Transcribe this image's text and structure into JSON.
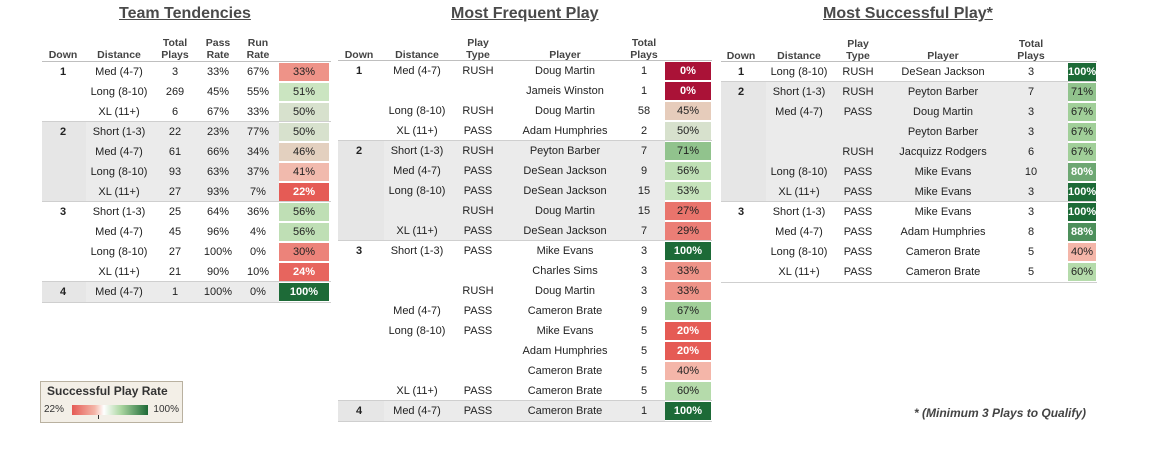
{
  "tables": [
    {
      "title": "Team Tendencies",
      "columns": [
        "Down",
        "Distance",
        "Total Plays",
        "Pass Rate",
        "Run Rate",
        ""
      ],
      "rows": [
        {
          "down": "1",
          "distance": "Med (4-7)",
          "plays": "3",
          "pass": "33%",
          "run": "67%",
          "rate": "33%",
          "rate_value": 33
        },
        {
          "down": "",
          "distance": "Long (8-10)",
          "plays": "269",
          "pass": "45%",
          "run": "55%",
          "rate": "51%",
          "rate_value": 51
        },
        {
          "down": "",
          "distance": "XL (11+)",
          "plays": "6",
          "pass": "67%",
          "run": "33%",
          "rate": "50%",
          "rate_value": 50
        },
        {
          "down": "2",
          "distance": "Short (1-3)",
          "plays": "22",
          "pass": "23%",
          "run": "77%",
          "rate": "50%",
          "rate_value": 50
        },
        {
          "down": "",
          "distance": "Med (4-7)",
          "plays": "61",
          "pass": "66%",
          "run": "34%",
          "rate": "46%",
          "rate_value": 46
        },
        {
          "down": "",
          "distance": "Long (8-10)",
          "plays": "93",
          "pass": "63%",
          "run": "37%",
          "rate": "41%",
          "rate_value": 41
        },
        {
          "down": "",
          "distance": "XL (11+)",
          "plays": "27",
          "pass": "93%",
          "run": "7%",
          "rate": "22%",
          "rate_value": 22
        },
        {
          "down": "3",
          "distance": "Short (1-3)",
          "plays": "25",
          "pass": "64%",
          "run": "36%",
          "rate": "56%",
          "rate_value": 56
        },
        {
          "down": "",
          "distance": "Med (4-7)",
          "plays": "45",
          "pass": "96%",
          "run": "4%",
          "rate": "56%",
          "rate_value": 56
        },
        {
          "down": "",
          "distance": "Long (8-10)",
          "plays": "27",
          "pass": "100%",
          "run": "0%",
          "rate": "30%",
          "rate_value": 30
        },
        {
          "down": "",
          "distance": "XL (11+)",
          "plays": "21",
          "pass": "90%",
          "run": "10%",
          "rate": "24%",
          "rate_value": 24
        },
        {
          "down": "4",
          "distance": "Med (4-7)",
          "plays": "1",
          "pass": "100%",
          "run": "0%",
          "rate": "100%",
          "rate_value": 100
        }
      ]
    },
    {
      "title": "Most Frequent Play",
      "columns": [
        "Down",
        "Distance",
        "Play Type",
        "Player",
        "Total Plays",
        ""
      ],
      "rows": [
        {
          "down": "1",
          "distance": "Med (4-7)",
          "type": "RUSH",
          "player": "Doug Martin",
          "plays": "1",
          "rate": "0%",
          "rate_value": 0
        },
        {
          "down": "",
          "distance": "",
          "type": "",
          "player": "Jameis Winston",
          "plays": "1",
          "rate": "0%",
          "rate_value": 0
        },
        {
          "down": "",
          "distance": "Long (8-10)",
          "type": "RUSH",
          "player": "Doug Martin",
          "plays": "58",
          "rate": "45%",
          "rate_value": 45
        },
        {
          "down": "",
          "distance": "XL (11+)",
          "type": "PASS",
          "player": "Adam Humphries",
          "plays": "2",
          "rate": "50%",
          "rate_value": 50
        },
        {
          "down": "2",
          "distance": "Short (1-3)",
          "type": "RUSH",
          "player": "Peyton Barber",
          "plays": "7",
          "rate": "71%",
          "rate_value": 71
        },
        {
          "down": "",
          "distance": "Med (4-7)",
          "type": "PASS",
          "player": "DeSean Jackson",
          "plays": "9",
          "rate": "56%",
          "rate_value": 56
        },
        {
          "down": "",
          "distance": "Long (8-10)",
          "type": "PASS",
          "player": "DeSean Jackson",
          "plays": "15",
          "rate": "53%",
          "rate_value": 53
        },
        {
          "down": "",
          "distance": "",
          "type": "RUSH",
          "player": "Doug Martin",
          "plays": "15",
          "rate": "27%",
          "rate_value": 27
        },
        {
          "down": "",
          "distance": "XL (11+)",
          "type": "PASS",
          "player": "DeSean Jackson",
          "plays": "7",
          "rate": "29%",
          "rate_value": 29
        },
        {
          "down": "3",
          "distance": "Short (1-3)",
          "type": "PASS",
          "player": "Mike Evans",
          "plays": "3",
          "rate": "100%",
          "rate_value": 100
        },
        {
          "down": "",
          "distance": "",
          "type": "",
          "player": "Charles Sims",
          "plays": "3",
          "rate": "33%",
          "rate_value": 33
        },
        {
          "down": "",
          "distance": "",
          "type": "RUSH",
          "player": "Doug Martin",
          "plays": "3",
          "rate": "33%",
          "rate_value": 33
        },
        {
          "down": "",
          "distance": "Med (4-7)",
          "type": "PASS",
          "player": "Cameron Brate",
          "plays": "9",
          "rate": "67%",
          "rate_value": 67
        },
        {
          "down": "",
          "distance": "Long (8-10)",
          "type": "PASS",
          "player": "Mike Evans",
          "plays": "5",
          "rate": "20%",
          "rate_value": 20
        },
        {
          "down": "",
          "distance": "",
          "type": "",
          "player": "Adam Humphries",
          "plays": "5",
          "rate": "20%",
          "rate_value": 20
        },
        {
          "down": "",
          "distance": "",
          "type": "",
          "player": "Cameron Brate",
          "plays": "5",
          "rate": "40%",
          "rate_value": 40
        },
        {
          "down": "",
          "distance": "XL (11+)",
          "type": "PASS",
          "player": "Cameron Brate",
          "plays": "5",
          "rate": "60%",
          "rate_value": 60
        },
        {
          "down": "4",
          "distance": "Med (4-7)",
          "type": "PASS",
          "player": "Cameron Brate",
          "plays": "1",
          "rate": "100%",
          "rate_value": 100
        }
      ]
    },
    {
      "title": "Most Successful Play*",
      "columns": [
        "Down",
        "Distance",
        "Play Type",
        "Player",
        "Total Plays",
        ""
      ],
      "rows": [
        {
          "down": "1",
          "distance": "Long (8-10)",
          "type": "RUSH",
          "player": "DeSean Jackson",
          "plays": "3",
          "rate": "100%",
          "rate_value": 100
        },
        {
          "down": "2",
          "distance": "Short (1-3)",
          "type": "RUSH",
          "player": "Peyton Barber",
          "plays": "7",
          "rate": "71%",
          "rate_value": 71
        },
        {
          "down": "",
          "distance": "Med (4-7)",
          "type": "PASS",
          "player": "Doug Martin",
          "plays": "3",
          "rate": "67%",
          "rate_value": 67
        },
        {
          "down": "",
          "distance": "",
          "type": "",
          "player": "Peyton Barber",
          "plays": "3",
          "rate": "67%",
          "rate_value": 67
        },
        {
          "down": "",
          "distance": "",
          "type": "RUSH",
          "player": "Jacquizz Rodgers",
          "plays": "6",
          "rate": "67%",
          "rate_value": 67
        },
        {
          "down": "",
          "distance": "Long (8-10)",
          "type": "PASS",
          "player": "Mike Evans",
          "plays": "10",
          "rate": "80%",
          "rate_value": 80
        },
        {
          "down": "",
          "distance": "XL (11+)",
          "type": "PASS",
          "player": "Mike Evans",
          "plays": "3",
          "rate": "100%",
          "rate_value": 100
        },
        {
          "down": "3",
          "distance": "Short (1-3)",
          "type": "PASS",
          "player": "Mike Evans",
          "plays": "3",
          "rate": "100%",
          "rate_value": 100
        },
        {
          "down": "",
          "distance": "Med (4-7)",
          "type": "PASS",
          "player": "Adam Humphries",
          "plays": "8",
          "rate": "88%",
          "rate_value": 88
        },
        {
          "down": "",
          "distance": "Long (8-10)",
          "type": "PASS",
          "player": "Cameron Brate",
          "plays": "5",
          "rate": "40%",
          "rate_value": 40
        },
        {
          "down": "",
          "distance": "XL (11+)",
          "type": "PASS",
          "player": "Cameron Brate",
          "plays": "5",
          "rate": "60%",
          "rate_value": 60
        }
      ]
    }
  ],
  "legend": {
    "title": "Successful Play Rate",
    "min_label": "22%",
    "max_label": "100%"
  },
  "footnote": "* (Minimum 3 Plays to Qualify)",
  "chart_data": [
    {
      "type": "table",
      "title": "Team Tendencies",
      "value_column": "Successful Play Rate",
      "color_scale": {
        "min": 22,
        "max": 100,
        "low_color": "#e55b55",
        "high_color": "#1d6a37"
      }
    },
    {
      "type": "table",
      "title": "Most Frequent Play",
      "value_column": "Successful Play Rate"
    },
    {
      "type": "table",
      "title": "Most Successful Play*",
      "value_column": "Successful Play Rate"
    }
  ],
  "colors": {
    "stripe": "#ebebeb",
    "low": "#e55b55",
    "mid": "#ffffff",
    "high": "#1d6a37"
  }
}
